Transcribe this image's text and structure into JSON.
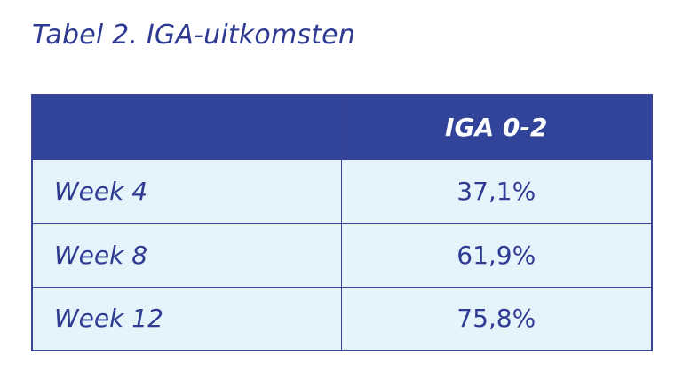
{
  "title": "Tabel 2. IGA-uitkomsten",
  "table": {
    "headers": [
      "",
      "IGA 0-2"
    ],
    "rows": [
      {
        "label": "Week 4",
        "value": "37,1%"
      },
      {
        "label": "Week 8",
        "value": "61,9%"
      },
      {
        "label": "Week 12",
        "value": "75,8%"
      }
    ]
  },
  "colors": {
    "header_background": "#32449a",
    "header_text": "#ffffff",
    "body_background": "#e5f3fb",
    "text": "#2f3b93",
    "border": "#3a4496"
  }
}
